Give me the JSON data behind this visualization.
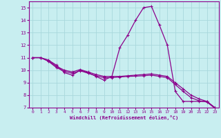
{
  "xlabel": "Windchill (Refroidissement éolien,°C)",
  "background_color": "#c8eef0",
  "grid_color": "#a8d8dc",
  "line_color": "#8b008b",
  "xlim": [
    -0.5,
    23.5
  ],
  "ylim": [
    7,
    15.5
  ],
  "xticks": [
    0,
    1,
    2,
    3,
    4,
    5,
    6,
    7,
    8,
    9,
    10,
    11,
    12,
    13,
    14,
    15,
    16,
    17,
    18,
    19,
    20,
    21,
    22,
    23
  ],
  "yticks": [
    7,
    8,
    9,
    10,
    11,
    12,
    13,
    14,
    15
  ],
  "series1_x": [
    0,
    1,
    2,
    3,
    4,
    5,
    6,
    7,
    8,
    9,
    10,
    11,
    12,
    13,
    14,
    15,
    16,
    17,
    18,
    19,
    20,
    21,
    22,
    23
  ],
  "series1_y": [
    11.0,
    11.0,
    10.8,
    10.4,
    9.8,
    9.6,
    10.0,
    9.8,
    9.5,
    9.2,
    9.5,
    11.8,
    12.8,
    14.0,
    15.0,
    15.1,
    13.6,
    12.0,
    8.3,
    7.5,
    7.5,
    7.5,
    7.5,
    7.0
  ],
  "series2_x": [
    0,
    1,
    2,
    3,
    4,
    5,
    6,
    7,
    8,
    9,
    10,
    11,
    12,
    13,
    14,
    15,
    16,
    17,
    18,
    19,
    20,
    21,
    22,
    23
  ],
  "series2_y": [
    11.0,
    11.0,
    10.75,
    10.3,
    10.0,
    9.85,
    10.05,
    9.85,
    9.65,
    9.5,
    9.5,
    9.5,
    9.55,
    9.6,
    9.65,
    9.7,
    9.6,
    9.5,
    9.0,
    8.5,
    8.0,
    7.7,
    7.5,
    7.0
  ],
  "series3_x": [
    0,
    1,
    2,
    3,
    4,
    5,
    6,
    7,
    8,
    9,
    10,
    11,
    12,
    13,
    14,
    15,
    16,
    17,
    18,
    19,
    20,
    21,
    22,
    23
  ],
  "series3_y": [
    11.0,
    11.0,
    10.7,
    10.2,
    9.9,
    9.75,
    9.95,
    9.75,
    9.55,
    9.4,
    9.4,
    9.45,
    9.5,
    9.52,
    9.55,
    9.6,
    9.5,
    9.4,
    8.85,
    8.3,
    7.8,
    7.55,
    7.45,
    6.95
  ]
}
